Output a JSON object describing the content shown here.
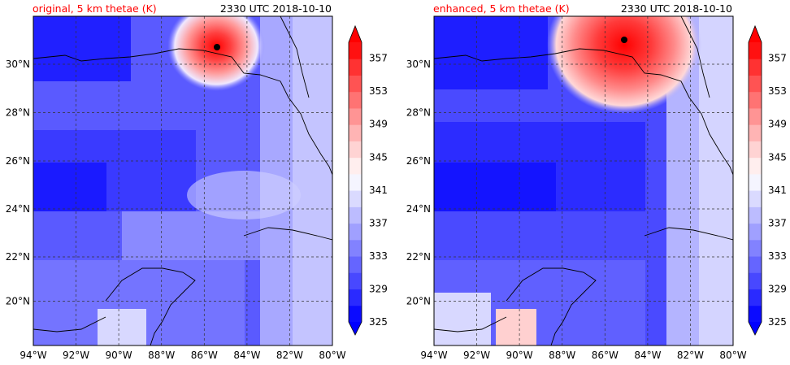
{
  "chart_data": [
    {
      "type": "heatmap",
      "title_left": "original, 5 km thetae (K)",
      "title_right": "2330 UTC 2018-10-10",
      "lon_range": [
        -94,
        -80
      ],
      "lat_range": [
        18,
        32
      ],
      "x_tick_labels": [
        "94°W",
        "92°W",
        "90°W",
        "88°W",
        "86°W",
        "84°W",
        "82°W",
        "80°W"
      ],
      "y_tick_labels": [
        "20°N",
        "22°N",
        "24°N",
        "26°N",
        "28°N",
        "30°N"
      ],
      "grid": true,
      "storm_center": {
        "lon": -85.4,
        "lat": 30.7
      },
      "field_description": "max thetae near storm center, low values west and south"
    },
    {
      "type": "heatmap",
      "title_left": "enhanced, 5 km thetae (K)",
      "title_right": "2330 UTC 2018-10-10",
      "lon_range": [
        -94,
        -80
      ],
      "lat_range": [
        18,
        32
      ],
      "x_tick_labels": [
        "94°W",
        "92°W",
        "90°W",
        "88°W",
        "86°W",
        "84°W",
        "82°W",
        "80°W"
      ],
      "y_tick_labels": [
        "20°N",
        "22°N",
        "24°N",
        "26°N",
        "28°N",
        "30°N"
      ],
      "grid": true,
      "storm_center": {
        "lon": -85.1,
        "lat": 31.0
      }
    }
  ],
  "colorbar": {
    "levels": [
      325,
      327,
      329,
      331,
      333,
      335,
      337,
      339,
      341,
      343,
      345,
      347,
      349,
      351,
      353,
      355,
      357,
      359
    ],
    "tick_labels": [
      "325",
      "329",
      "333",
      "337",
      "341",
      "345",
      "349",
      "353",
      "357"
    ],
    "extend": "both",
    "colors": [
      "#0b0bff",
      "#2a2aff",
      "#4848ff",
      "#6565ff",
      "#8282ff",
      "#a0a0ff",
      "#bcbcff",
      "#dadaff",
      "#f5f5ff",
      "#ffeeee",
      "#ffd3d3",
      "#ffb4b4",
      "#ff9494",
      "#ff7373",
      "#ff5353",
      "#ff3232",
      "#ff1111"
    ],
    "color_under": "#0000ff",
    "color_over": "#ff0000"
  },
  "title_color": "#ff0000"
}
